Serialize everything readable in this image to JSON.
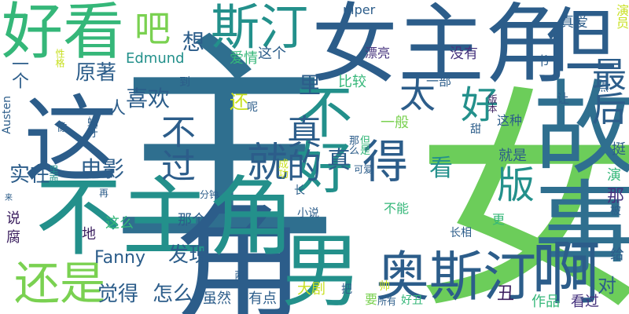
{
  "colors": {
    "background": "#ffffff",
    "dark_blue": "#2c5d8a",
    "teal_blue": "#2f6f8f",
    "teal": "#23908b",
    "green": "#35b779",
    "lime": "#7ad151",
    "yellow": "#c8e020",
    "purple": "#46337e",
    "dark_purple": "#3b1f5f"
  },
  "words": [
    {
      "text": "女",
      "weight": 1.0,
      "color": "#6ccd5a"
    },
    {
      "text": "主",
      "weight": 0.95,
      "color": "#2f6f8f"
    },
    {
      "text": "角",
      "weight": 0.7,
      "color": "#2c5d8a"
    },
    {
      "text": "女主角",
      "weight": 0.6,
      "color": "#2c5d8a"
    },
    {
      "text": "不主角",
      "weight": 0.55,
      "color": "#23908b"
    },
    {
      "text": "故事",
      "weight": 0.5,
      "color": "#2f6f8f"
    },
    {
      "text": "这",
      "weight": 0.45,
      "color": "#2c5d8a"
    },
    {
      "text": "男",
      "weight": 0.45,
      "color": "#23908b"
    },
    {
      "text": "奥斯汀",
      "weight": 0.4,
      "color": "#2c5d8a"
    },
    {
      "text": "啊",
      "weight": 0.4,
      "color": "#2c5d8a"
    },
    {
      "text": "好看",
      "weight": 0.35,
      "color": "#35b779"
    },
    {
      "text": "但",
      "weight": 0.35,
      "color": "#2c5d8a"
    },
    {
      "text": "不好",
      "weight": 0.35,
      "color": "#23908b"
    },
    {
      "text": "斯汀",
      "weight": 0.3,
      "color": "#23908b"
    },
    {
      "text": "还是",
      "weight": 0.3,
      "color": "#7ad151"
    },
    {
      "text": "最后",
      "weight": 0.25,
      "color": "#2c5d8a"
    },
    {
      "text": "就",
      "weight": 0.25,
      "color": "#2c5d8a"
    },
    {
      "text": "得",
      "weight": 0.25,
      "color": "#2c5d8a"
    },
    {
      "text": "好",
      "weight": 0.25,
      "color": "#23908b"
    },
    {
      "text": "太",
      "weight": 0.25,
      "color": "#2c5d8a"
    },
    {
      "text": "版",
      "weight": 0.22,
      "color": "#23908b"
    },
    {
      "text": "吧",
      "weight": 0.2,
      "color": "#7ad151"
    },
    {
      "text": "真的",
      "weight": 0.2,
      "color": "#2c5d8a"
    },
    {
      "text": "不过",
      "weight": 0.2,
      "color": "#2c5d8a"
    },
    {
      "text": "电影",
      "weight": 0.18,
      "color": "#2c5d8a"
    },
    {
      "text": "喜欢",
      "weight": 0.18,
      "color": "#2c5d8a"
    },
    {
      "text": "原著",
      "weight": 0.18,
      "color": "#2c5d8a"
    },
    {
      "text": "实在",
      "weight": 0.18,
      "color": "#2c5d8a"
    },
    {
      "text": "觉得",
      "weight": 0.16,
      "color": "#2c5d8a"
    },
    {
      "text": "怎么",
      "weight": 0.16,
      "color": "#2c5d8a"
    },
    {
      "text": "发现",
      "weight": 0.16,
      "color": "#2c5d8a"
    },
    {
      "text": "Fanny",
      "weight": 0.15,
      "color": "#2c5d8a"
    },
    {
      "text": "想",
      "weight": 0.15,
      "color": "#2c5d8a"
    },
    {
      "text": "里",
      "weight": 0.15,
      "color": "#2c5d8a"
    },
    {
      "text": "真",
      "weight": 0.15,
      "color": "#2c5d8a"
    },
    {
      "text": "看",
      "weight": 0.15,
      "color": "#23908b"
    },
    {
      "text": "还",
      "weight": 0.14,
      "color": "#c8e020"
    },
    {
      "text": "对",
      "weight": 0.13,
      "color": "#2c5d8a"
    },
    {
      "text": "一个",
      "weight": 0.12,
      "color": "#2c5d8a"
    },
    {
      "text": "Edmund",
      "weight": 0.12,
      "color": "#23908b"
    },
    {
      "text": "爱情",
      "weight": 0.11,
      "color": "#35b779"
    },
    {
      "text": "这个",
      "weight": 0.11,
      "color": "#2c5d8a"
    },
    {
      "text": "比较",
      "weight": 0.11,
      "color": "#35b779"
    },
    {
      "text": "一部",
      "weight": 0.11,
      "color": "#2c5d8a"
    },
    {
      "text": "一般",
      "weight": 0.11,
      "color": "#7ad151"
    },
    {
      "text": "漂亮",
      "weight": 0.1,
      "color": "#46337e"
    },
    {
      "text": "没有",
      "weight": 0.1,
      "color": "#46337e"
    },
    {
      "text": "真爱",
      "weight": 0.1,
      "color": "#2c5d8a"
    },
    {
      "text": "演员",
      "weight": 0.1,
      "color": "#c8e020"
    },
    {
      "text": "piper",
      "weight": 0.1,
      "color": "#2c5d8a"
    },
    {
      "text": "Austen",
      "weight": 0.1,
      "color": "#2c5d8a"
    },
    {
      "text": "人",
      "weight": 0.1,
      "color": "#2c5d8a"
    },
    {
      "text": "这种",
      "weight": 0.1,
      "color": "#2c5d8a"
    },
    {
      "text": "就是",
      "weight": 0.1,
      "color": "#2c5d8a"
    },
    {
      "text": "挺",
      "weight": 0.1,
      "color": "#2c5d8a"
    },
    {
      "text": "演",
      "weight": 0.1,
      "color": "#35b779"
    },
    {
      "text": "那",
      "weight": 0.1,
      "color": "#46337e"
    },
    {
      "text": "那个",
      "weight": 0.1,
      "color": "#2c5d8a"
    },
    {
      "text": "这么",
      "weight": 0.1,
      "color": "#35b779"
    },
    {
      "text": "大剧",
      "weight": 0.1,
      "color": "#c8e020"
    },
    {
      "text": "有点",
      "weight": 0.1,
      "color": "#2c5d8a"
    },
    {
      "text": "虽然",
      "weight": 0.1,
      "color": "#2c5d8a"
    },
    {
      "text": "作品",
      "weight": 0.1,
      "color": "#35b779"
    },
    {
      "text": "看过",
      "weight": 0.1,
      "color": "#46337e"
    },
    {
      "text": "丑",
      "weight": 0.1,
      "color": "#3b1f5f"
    },
    {
      "text": "给",
      "weight": 0.1,
      "color": "#2c5d8a"
    },
    {
      "text": "说",
      "weight": 0.1,
      "color": "#3b1f5f"
    },
    {
      "text": "腐",
      "weight": 0.1,
      "color": "#3b1f5f"
    },
    {
      "text": "地",
      "weight": 0.1,
      "color": "#3b1f5f"
    },
    {
      "text": "小说",
      "weight": 0.08,
      "color": "#2c5d8a"
    },
    {
      "text": "不能",
      "weight": 0.08,
      "color": "#35b779"
    },
    {
      "text": "更",
      "weight": 0.08,
      "color": "#35b779"
    },
    {
      "text": "长相",
      "weight": 0.07,
      "color": "#2c5d8a"
    },
    {
      "text": "让",
      "weight": 0.07,
      "color": "#2c5d8a"
    },
    {
      "text": "书",
      "weight": 0.07,
      "color": "#2c5d8a"
    },
    {
      "text": "点",
      "weight": 0.07,
      "color": "#2c5d8a"
    },
    {
      "text": "版本",
      "weight": 0.07,
      "color": "#3b1f5f"
    },
    {
      "text": "甜",
      "weight": 0.07,
      "color": "#2c5d8a"
    },
    {
      "text": "被",
      "weight": 0.07,
      "color": "#2c5d8a"
    },
    {
      "text": "到",
      "weight": 0.07,
      "color": "#2c5d8a"
    },
    {
      "text": "像",
      "weight": 0.07,
      "color": "#2c5d8a"
    },
    {
      "text": "性格",
      "weight": 0.06,
      "color": "#c8e020"
    },
    {
      "text": "蝴牙",
      "weight": 0.06,
      "color": "#2c5d8a"
    },
    {
      "text": "里面",
      "weight": 0.06,
      "color": "#23908b"
    },
    {
      "text": "再",
      "weight": 0.06,
      "color": "#2c5d8a"
    },
    {
      "text": "来",
      "weight": 0.06,
      "color": "#2c5d8a"
    },
    {
      "text": "分钟",
      "weight": 0.06,
      "color": "#2c5d8a"
    },
    {
      "text": "成功",
      "weight": 0.06,
      "color": "#c8e020"
    },
    {
      "text": "可爱",
      "weight": 0.06,
      "color": "#2c5d8a"
    },
    {
      "text": "那么",
      "weight": 0.06,
      "color": "#2c5d8a"
    },
    {
      "text": "但是",
      "weight": 0.06,
      "color": "#35b779"
    },
    {
      "text": "呢",
      "weight": 0.06,
      "color": "#2c5d8a"
    },
    {
      "text": "长",
      "weight": 0.06,
      "color": "#2c5d8a"
    },
    {
      "text": "帅",
      "weight": 0.06,
      "color": "#c8e020"
    },
    {
      "text": "两个",
      "weight": 0.06,
      "color": "#2c5d8a"
    },
    {
      "text": "要",
      "weight": 0.06,
      "color": "#7ad151"
    },
    {
      "text": "所有",
      "weight": 0.06,
      "color": "#2c5d8a"
    },
    {
      "text": "好丑",
      "weight": 0.06,
      "color": "#35b779"
    },
    {
      "text": "把",
      "weight": 0.06,
      "color": "#2c5d8a"
    }
  ]
}
